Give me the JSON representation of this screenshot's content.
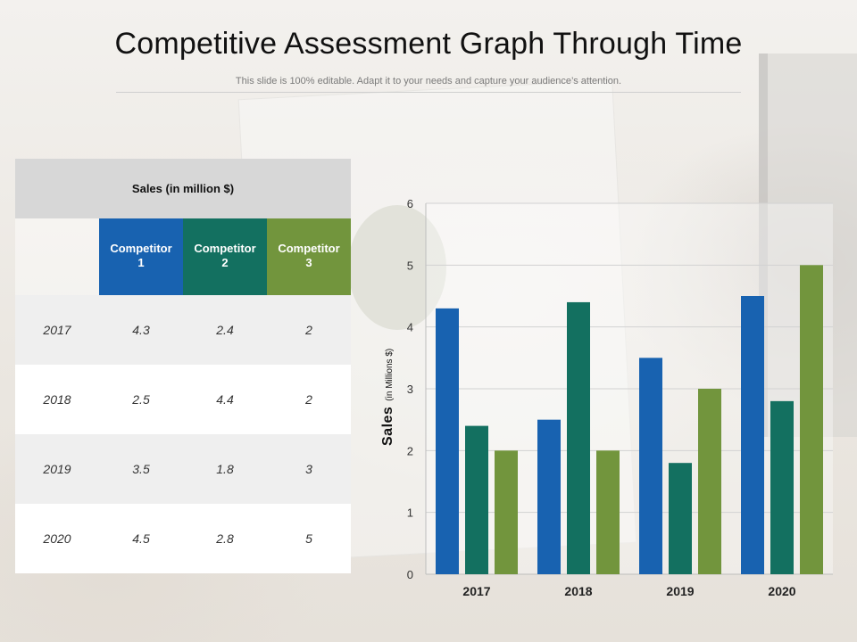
{
  "title": "Competitive Assessment Graph Through Time",
  "subtitle": "This slide is 100% editable. Adapt it to your needs and capture your audience’s attention.",
  "table": {
    "caption": "Sales (in million $)",
    "columns": [
      {
        "line1": "Competitor",
        "line2": "1",
        "color": "#1862b0"
      },
      {
        "line1": "Competitor",
        "line2": "2",
        "color": "#137060"
      },
      {
        "line1": "Competitor",
        "line2": "3",
        "color": "#72953d"
      }
    ],
    "rows": [
      {
        "year": "2017",
        "values": [
          "4.3",
          "2.4",
          "2"
        ]
      },
      {
        "year": "2018",
        "values": [
          "2.5",
          "4.4",
          "2"
        ]
      },
      {
        "year": "2019",
        "values": [
          "3.5",
          "1.8",
          "3"
        ]
      },
      {
        "year": "2020",
        "values": [
          "4.5",
          "2.8",
          "5"
        ]
      }
    ]
  },
  "chart_data": {
    "type": "bar",
    "categories": [
      "2017",
      "2018",
      "2019",
      "2020"
    ],
    "series": [
      {
        "name": "Competitor 1",
        "values": [
          4.3,
          2.5,
          3.5,
          4.5
        ],
        "color": "#1862b0"
      },
      {
        "name": "Competitor 2",
        "values": [
          2.4,
          4.4,
          1.8,
          2.8
        ],
        "color": "#137060"
      },
      {
        "name": "Competitor 3",
        "values": [
          2,
          2,
          3,
          5
        ],
        "color": "#72953d"
      }
    ],
    "ylabel": "Sales",
    "ylabel_unit": "(in Millions $)",
    "ylim": [
      0,
      6
    ],
    "yticks": [
      "0",
      "1",
      "2",
      "3",
      "4",
      "5",
      "6"
    ],
    "grid": true
  }
}
